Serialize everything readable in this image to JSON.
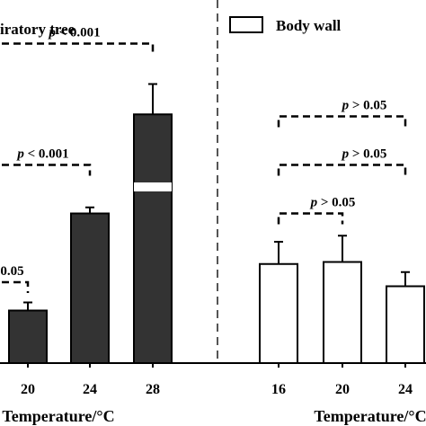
{
  "chart_data": [
    {
      "type": "bar",
      "panel_title": "iratory tree",
      "categories": [
        "",
        "20",
        "24",
        "28"
      ],
      "values": [
        0,
        13.0,
        37.0,
        61.5
      ],
      "errors": [
        0,
        2.0,
        1.5,
        7.5
      ],
      "bar_color": "#333333",
      "xlabel": "Temperature/°C",
      "comparisons": [
        {
          "label_p": "p",
          "label_rest": " < 0.001",
          "from": 0,
          "to": 3,
          "level": 79
        },
        {
          "label_p": "p",
          "label_rest": " < 0.001",
          "from": 0,
          "to": 2,
          "level": 49
        },
        {
          "label_p": "",
          "label_rest": "0.05",
          "from": 0,
          "to": 1,
          "level": 20
        }
      ]
    },
    {
      "type": "bar",
      "legend_label": "Body wall",
      "categories": [
        "16",
        "20",
        "24"
      ],
      "values": [
        24.5,
        25.0,
        19.0
      ],
      "errors": [
        5.5,
        6.5,
        3.5
      ],
      "bar_color": "#ffffff",
      "xlabel": "Temperature/°C",
      "comparisons": [
        {
          "label_p": "p",
          "label_rest": " > 0.05",
          "from": 0,
          "to": 2,
          "level": 61
        },
        {
          "label_p": "p",
          "label_rest": " > 0.05",
          "from": 0,
          "to": 2,
          "level": 49
        },
        {
          "label_p": "p",
          "label_rest": " > 0.05",
          "from": 0,
          "to": 1,
          "level": 37
        }
      ]
    }
  ]
}
